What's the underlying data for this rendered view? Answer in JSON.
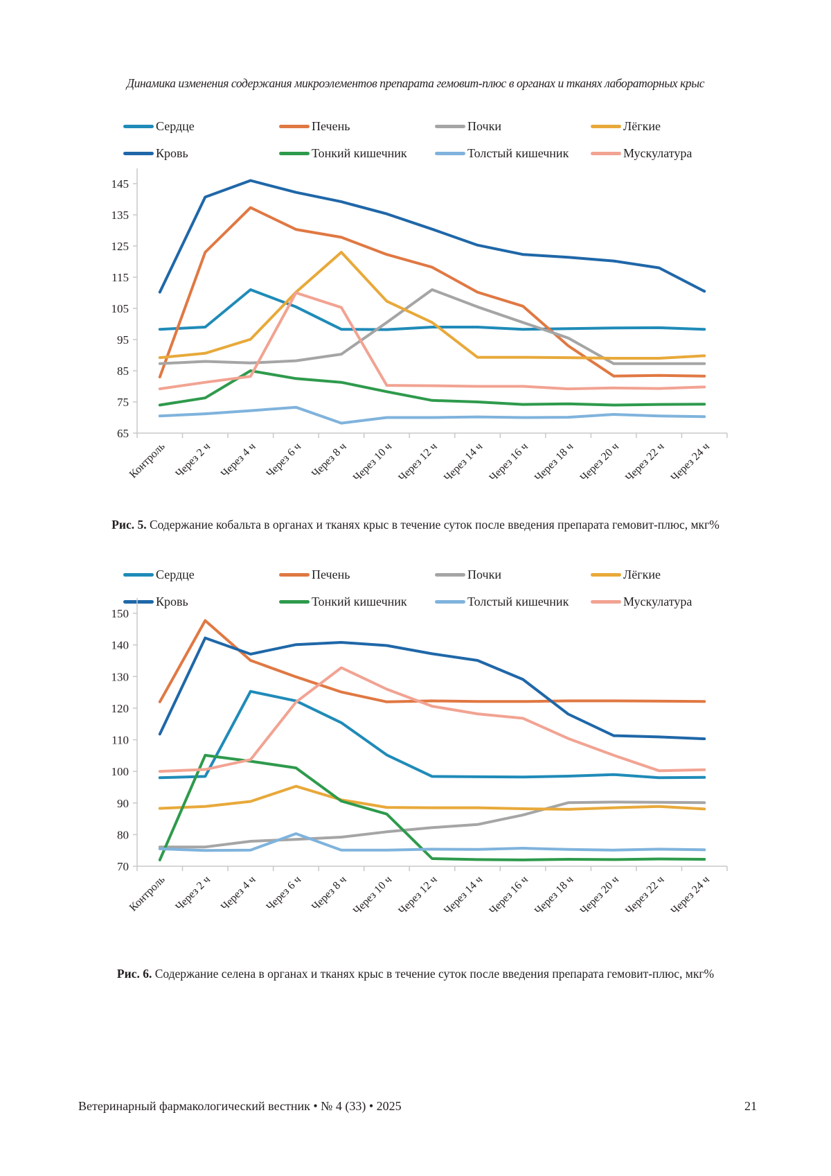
{
  "page": {
    "running_head": "Динамика изменения содержания микроэлементов препарата гемовит-плюс в органах и тканях лабораторных крыс",
    "footer": "Ветеринарный фармакологический вестник • № 4 (33) • 2025",
    "page_number": "21"
  },
  "captions": [
    {
      "label": "Рис. 5.",
      "text": " Содержание кобальта в органах и тканях крыс в течение суток после введения препарата гемовит-плюс, мкг%"
    },
    {
      "label": "Рис. 6.",
      "text": " Содержание селена в органах и тканях крыс в течение суток после введения препарата гемовит-плюс, мкг%"
    }
  ],
  "legend": [
    {
      "name": "Сердце",
      "color": "#1f8bb8"
    },
    {
      "name": "Печень",
      "color": "#e07843"
    },
    {
      "name": "Почки",
      "color": "#a5a5a5"
    },
    {
      "name": "Лёгкие",
      "color": "#e8a93a"
    },
    {
      "name": "Кровь",
      "color": "#1f67a8"
    },
    {
      "name": "Тонкий кишечник",
      "color": "#2e9a4c"
    },
    {
      "name": "Толстый кишечник",
      "color": "#7fb3dc"
    },
    {
      "name": "Мускулатура",
      "color": "#f2a392"
    }
  ],
  "chart_data": [
    {
      "type": "line",
      "title": "Рис. 5. Содержание кобальта в органах и тканях крыс в течение суток после введения препарата гемовит-плюс, мкг%",
      "xlabel": "",
      "ylabel": "",
      "categories": [
        "Контроль",
        "Через 2 ч",
        "Через 4 ч",
        "Через 6 ч",
        "Через 8 ч",
        "Через 10 ч",
        "Через 12 ч",
        "Через 14 ч",
        "Через 16 ч",
        "Через 18 ч",
        "Через 20 ч",
        "Через 22 ч",
        "Через 24 ч"
      ],
      "ylim": [
        65,
        145
      ],
      "yticks": [
        65,
        75,
        85,
        95,
        105,
        115,
        125,
        135,
        145
      ],
      "grid": false,
      "legend_position": "top",
      "series": [
        {
          "name": "Сердце",
          "values": [
            98.3,
            99,
            111,
            105.5,
            98.3,
            98.2,
            99,
            99,
            98.3,
            98.5,
            98.7,
            98.8,
            98.3
          ]
        },
        {
          "name": "Печень",
          "values": [
            83,
            123,
            137.3,
            130.3,
            127.8,
            122.3,
            118.2,
            110.2,
            105.7,
            93,
            83.3,
            83.5,
            83.3
          ]
        },
        {
          "name": "Почки",
          "values": [
            87.3,
            88,
            87.5,
            88.2,
            90.3,
            100.5,
            111,
            105.5,
            100.5,
            95.5,
            87.3,
            87.3,
            87.3
          ]
        },
        {
          "name": "Лёгкие",
          "values": [
            89.2,
            90.6,
            95.1,
            110.2,
            123,
            107.3,
            100.5,
            89.3,
            89.3,
            89.2,
            89,
            89,
            89.8
          ]
        },
        {
          "name": "Кровь",
          "values": [
            110.2,
            140.7,
            146,
            142.2,
            139.2,
            135.3,
            130.4,
            125.3,
            122.3,
            121.4,
            120.2,
            118,
            110.5
          ]
        },
        {
          "name": "Тонкий кишечник",
          "values": [
            74,
            76.3,
            85,
            82.5,
            81.3,
            78.3,
            75.5,
            75,
            74.2,
            74.4,
            74,
            74.2,
            74.3
          ]
        },
        {
          "name": "Толстый кишечник",
          "values": [
            70.5,
            71.2,
            72.2,
            73.3,
            68.2,
            70,
            70,
            70.2,
            70,
            70.1,
            71,
            70.5,
            70.3
          ]
        },
        {
          "name": "Мускулатура",
          "values": [
            79.2,
            81.3,
            83.2,
            110,
            105.3,
            80.3,
            80.2,
            80,
            80,
            79.2,
            79.5,
            79.3,
            79.8
          ]
        }
      ]
    },
    {
      "type": "line",
      "title": "Рис. 6. Содержание селена в органах и тканях крыс в течение суток после введения препарата гемовит-плюс, мкг%",
      "xlabel": "",
      "ylabel": "",
      "categories": [
        "Контроль",
        "Через 2 ч",
        "Через 4 ч",
        "Через 6 ч",
        "Через 8 ч",
        "Через 10 ч",
        "Через 12 ч",
        "Через 14 ч",
        "Через 16 ч",
        "Через 18 ч",
        "Через 20 ч",
        "Через 22 ч",
        "Через 24 ч"
      ],
      "ylim": [
        70,
        150
      ],
      "yticks": [
        70,
        80,
        90,
        100,
        110,
        120,
        130,
        140,
        150
      ],
      "grid": false,
      "legend_position": "top",
      "series": [
        {
          "name": "Сердце",
          "values": [
            98,
            98.4,
            125.3,
            122.3,
            115.4,
            105.2,
            98.4,
            98.3,
            98.2,
            98.5,
            99,
            98,
            98.1
          ]
        },
        {
          "name": "Печень",
          "values": [
            122,
            147.7,
            135.1,
            129.9,
            125.1,
            122,
            122.3,
            122.1,
            122.1,
            122.3,
            122.3,
            122.2,
            122.1
          ]
        },
        {
          "name": "Почки",
          "values": [
            76.1,
            76.1,
            77.9,
            78.5,
            79.2,
            80.9,
            82.2,
            83.2,
            86.2,
            90.1,
            90.3,
            90.2,
            90.1
          ]
        },
        {
          "name": "Лёгкие",
          "values": [
            88.3,
            88.9,
            90.5,
            95.3,
            91,
            88.6,
            88.5,
            88.5,
            88.2,
            88,
            88.5,
            88.9,
            88.1
          ]
        },
        {
          "name": "Кровь",
          "values": [
            111.8,
            142.2,
            137.1,
            140.1,
            140.8,
            139.8,
            137.2,
            135.1,
            129.1,
            118.1,
            111.3,
            110.9,
            110.3
          ]
        },
        {
          "name": "Тонкий кишечник",
          "values": [
            72,
            105.1,
            103.2,
            101.1,
            90.6,
            86.5,
            72.4,
            72.1,
            72,
            72.2,
            72.1,
            72.3,
            72.2
          ]
        },
        {
          "name": "Толстый кишечник",
          "values": [
            75.5,
            75,
            75.1,
            80.3,
            75.1,
            75.1,
            75.4,
            75.3,
            75.7,
            75.3,
            75.1,
            75.4,
            75.2
          ]
        },
        {
          "name": "Мускулатура",
          "values": [
            100,
            100.6,
            103.7,
            121.9,
            132.8,
            126,
            120.6,
            118.2,
            116.8,
            110.4,
            105.1,
            100.2,
            100.5
          ]
        }
      ]
    }
  ]
}
